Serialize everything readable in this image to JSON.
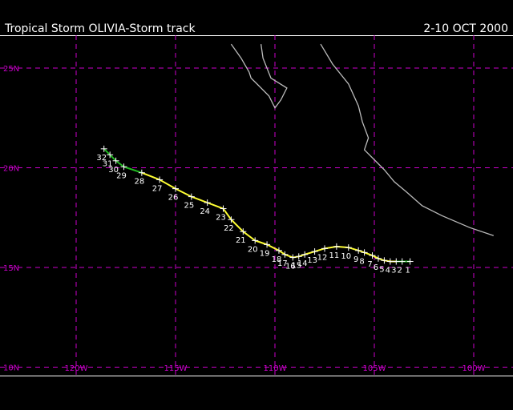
{
  "header": {
    "title": "Tropical Storm OLIVIA-Storm track",
    "date_range": "2-10 OCT 2000"
  },
  "map": {
    "lat_labels": [
      "25N",
      "20N",
      "15N",
      "10N"
    ],
    "lon_labels": [
      "120W",
      "115W",
      "110W",
      "105W",
      "100W"
    ],
    "colors": {
      "background": "#000000",
      "grid": "#cc00cc",
      "coast": "#bbbbbb",
      "track_storm": "#ffff33",
      "track_depression": "#22bb22",
      "labels": "#ffffff"
    }
  },
  "track": {
    "points": [
      {
        "label": "1",
        "lon": -103.2,
        "lat": 15.3
      },
      {
        "label": "2",
        "lon": -103.6,
        "lat": 15.3
      },
      {
        "label": "3",
        "lon": -103.9,
        "lat": 15.3
      },
      {
        "label": "4",
        "lon": -104.2,
        "lat": 15.3
      },
      {
        "label": "5",
        "lon": -104.5,
        "lat": 15.35
      },
      {
        "label": "6",
        "lon": -104.8,
        "lat": 15.45
      },
      {
        "label": "7",
        "lon": -105.1,
        "lat": 15.6
      },
      {
        "label": "8",
        "lon": -105.5,
        "lat": 15.75
      },
      {
        "label": "9",
        "lon": -105.8,
        "lat": 15.85
      },
      {
        "label": "10",
        "lon": -106.3,
        "lat": 16.0
      },
      {
        "label": "11",
        "lon": -106.9,
        "lat": 16.05
      },
      {
        "label": "12",
        "lon": -107.5,
        "lat": 15.95
      },
      {
        "label": "13",
        "lon": -108.0,
        "lat": 15.8
      },
      {
        "label": "14",
        "lon": -108.5,
        "lat": 15.65
      },
      {
        "label": "15",
        "lon": -108.8,
        "lat": 15.55
      },
      {
        "label": "16",
        "lon": -109.1,
        "lat": 15.5
      },
      {
        "label": "17",
        "lon": -109.5,
        "lat": 15.65
      },
      {
        "label": "18",
        "lon": -109.8,
        "lat": 15.85
      },
      {
        "label": "19",
        "lon": -110.4,
        "lat": 16.15
      },
      {
        "label": "20",
        "lon": -111.0,
        "lat": 16.35
      },
      {
        "label": "21",
        "lon": -111.6,
        "lat": 16.8
      },
      {
        "label": "22",
        "lon": -112.2,
        "lat": 17.4
      },
      {
        "label": "23",
        "lon": -112.6,
        "lat": 17.95
      },
      {
        "label": "24",
        "lon": -113.4,
        "lat": 18.25
      },
      {
        "label": "25",
        "lon": -114.2,
        "lat": 18.55
      },
      {
        "label": "26",
        "lon": -115.0,
        "lat": 18.95
      },
      {
        "label": "27",
        "lon": -115.8,
        "lat": 19.4
      },
      {
        "label": "28",
        "lon": -116.7,
        "lat": 19.75
      },
      {
        "label": "29",
        "lon": -117.6,
        "lat": 20.05
      },
      {
        "label": "30",
        "lon": -118.0,
        "lat": 20.35
      },
      {
        "label": "31",
        "lon": -118.3,
        "lat": 20.65
      },
      {
        "label": "32",
        "lon": -118.6,
        "lat": 20.95
      }
    ]
  },
  "coastline": {
    "mainland": [
      [
        -107.7,
        26.2
      ],
      [
        -107.1,
        25.2
      ],
      [
        -106.3,
        24.2
      ],
      [
        -105.8,
        23.1
      ],
      [
        -105.6,
        22.3
      ],
      [
        -105.3,
        21.5
      ],
      [
        -105.5,
        20.9
      ],
      [
        -105.0,
        20.4
      ],
      [
        -104.5,
        19.9
      ],
      [
        -104.0,
        19.3
      ],
      [
        -103.4,
        18.8
      ],
      [
        -102.6,
        18.1
      ],
      [
        -101.6,
        17.6
      ],
      [
        -100.2,
        17.0
      ],
      [
        -99.0,
        16.6
      ]
    ],
    "baja": [
      [
        -112.2,
        26.2
      ],
      [
        -111.7,
        25.5
      ],
      [
        -111.3,
        24.8
      ],
      [
        -111.2,
        24.5
      ],
      [
        -110.9,
        24.2
      ],
      [
        -110.3,
        23.6
      ],
      [
        -110.0,
        23.0
      ],
      [
        -109.7,
        23.4
      ],
      [
        -109.4,
        24.0
      ],
      [
        -110.2,
        24.5
      ],
      [
        -110.6,
        25.5
      ],
      [
        -110.7,
        26.2
      ]
    ]
  }
}
